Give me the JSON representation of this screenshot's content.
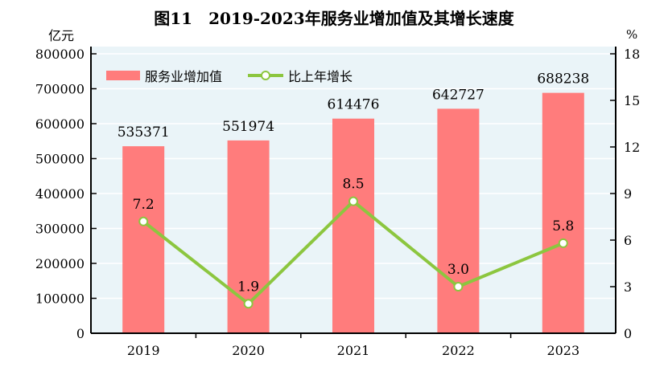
{
  "chart_data": {
    "type": "bar+line",
    "title": "图11　2019-2023年服务业增加值及其增长速度",
    "ylabel_left": "亿元",
    "ylabel_right": "%",
    "categories": [
      "2019",
      "2020",
      "2021",
      "2022",
      "2023"
    ],
    "series": [
      {
        "name": "服务业增加值",
        "type": "bar",
        "axis": "left",
        "values": [
          535371,
          551974,
          614476,
          642727,
          688238
        ],
        "color": "#ff7c7c"
      },
      {
        "name": "比上年增长",
        "type": "line",
        "axis": "right",
        "values": [
          7.2,
          1.9,
          8.5,
          3.0,
          5.8
        ],
        "labels": [
          "7.2",
          "1.9",
          "8.5",
          "3.0",
          "5.8"
        ],
        "color": "#8cc63f"
      }
    ],
    "ylim_left": [
      0,
      800000
    ],
    "yticks_left": [
      "0",
      "100000",
      "200000",
      "300000",
      "400000",
      "500000",
      "600000",
      "700000",
      "800000"
    ],
    "ylim_right": [
      0,
      18
    ],
    "yticks_right": [
      "0",
      "3",
      "6",
      "9",
      "12",
      "15",
      "18"
    ],
    "grid": true,
    "legend": "top-left",
    "plot_background": "#eaf4f8"
  }
}
